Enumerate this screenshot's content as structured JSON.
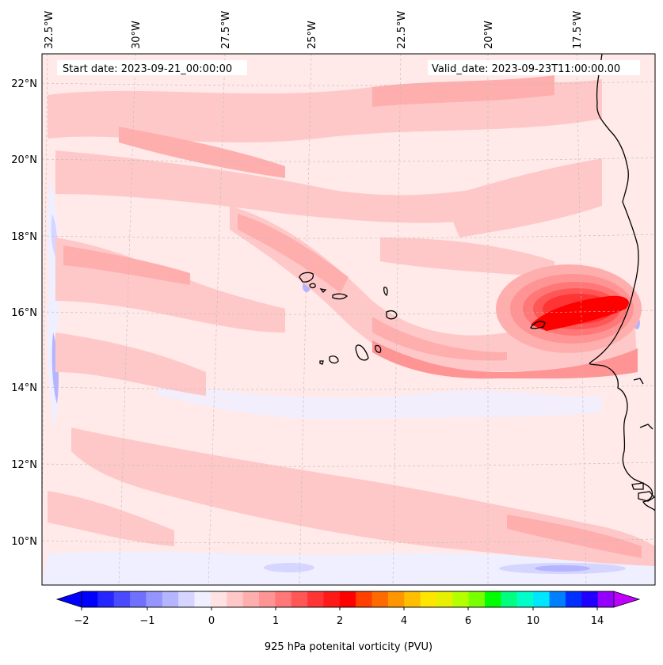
{
  "header": {
    "start_date": "Start date: 2023-09-21_00:00:00",
    "valid_date": "Valid_date: 2023-09-23T11:00:00.00"
  },
  "lon_labels": [
    "32.5°W",
    "30°W",
    "27.5°W",
    "25°W",
    "22.5°W",
    "20°W",
    "17.5°W"
  ],
  "lat_labels": [
    "22°N",
    "20°N",
    "18°N",
    "16°N",
    "14°N",
    "12°N",
    "10°N"
  ],
  "colorbar": {
    "label": "925 hPa potenital vorticity (PVU)",
    "tick_labels": [
      "−2",
      "−1",
      "0",
      "1",
      "2",
      "4",
      "6",
      "10",
      "14"
    ],
    "colors": [
      "#0000ff",
      "#2525ff",
      "#4a4aff",
      "#7070ff",
      "#9595ff",
      "#b5b5ff",
      "#d5d5ff",
      "#efefff",
      "#ffe2e2",
      "#ffc8c8",
      "#ffaeae",
      "#ff9494",
      "#ff7777",
      "#ff5656",
      "#ff3535",
      "#ff1a1a",
      "#ff0000",
      "#ff4000",
      "#ff6a00",
      "#ff9600",
      "#ffbe00",
      "#ffe600",
      "#e6f000",
      "#b4ff00",
      "#78ff00",
      "#00ff00",
      "#00ff80",
      "#00ffc8",
      "#00e6ff",
      "#0080ff",
      "#0030ff",
      "#2000ff",
      "#9600ff"
    ],
    "under_color": "#0000ff",
    "over_color": "#c000ff"
  },
  "map": {
    "background_color": "#ffe9e9",
    "coastline_color": "#000000",
    "gridline_color": "#bbbbbb"
  }
}
